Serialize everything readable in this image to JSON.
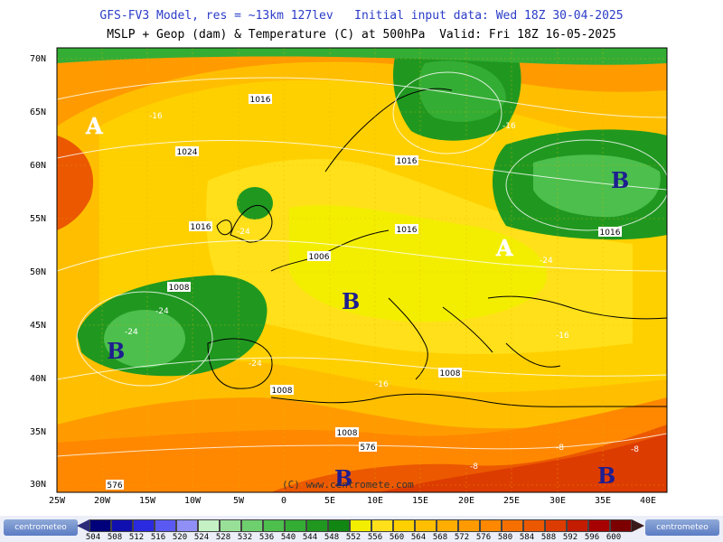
{
  "header": {
    "line1": "GFS-FV3 Model, res = ~13km 127lev   Initial input data: Wed 18Z 30-04-2025",
    "line2": "MSLP + Geop (dam) & Temperature (C) at 500hPa  Valid: Fri 18Z 16-05-2025"
  },
  "axes": {
    "lat_labels": [
      "70N",
      "65N",
      "60N",
      "55N",
      "50N",
      "45N",
      "40N",
      "35N",
      "30N"
    ],
    "lon_labels": [
      "25W",
      "20W",
      "15W",
      "10W",
      "5W",
      "0",
      "5E",
      "10E",
      "15E",
      "20E",
      "25E",
      "30E",
      "35E",
      "40E"
    ]
  },
  "pressure_centers": [
    {
      "type": "A",
      "region": "west of Ireland, north Atlantic"
    },
    {
      "type": "A",
      "region": "Ukraine"
    },
    {
      "type": "B",
      "region": "Iberian Atlantic"
    },
    {
      "type": "B",
      "region": "France / Central Europe"
    },
    {
      "type": "B",
      "region": "Western Russia"
    },
    {
      "type": "B",
      "region": "North Africa"
    },
    {
      "type": "B",
      "region": "Eastern Mediterranean"
    }
  ],
  "isobar_labels": [
    "1016",
    "1016",
    "1024",
    "1016",
    "1016",
    "1006",
    "1008",
    "1008",
    "1008",
    "1008",
    "1016"
  ],
  "temp_labels": [
    "-16",
    "-24",
    "-24",
    "-24",
    "-24",
    "-24",
    "-16",
    "-16",
    "-16",
    "-8",
    "-8",
    "-8"
  ],
  "geop_labels": [
    "576",
    "576"
  ],
  "copyright": "(C) www.centromete.com",
  "logos": {
    "left": "centrometeo",
    "right": "centrometeo"
  },
  "scale": {
    "values": [
      "504",
      "508",
      "512",
      "516",
      "520",
      "524",
      "528",
      "532",
      "536",
      "540",
      "544",
      "548",
      "552",
      "556",
      "560",
      "564",
      "568",
      "572",
      "576",
      "580",
      "584",
      "588",
      "592",
      "596",
      "600"
    ],
    "colors": [
      "#00007a",
      "#1010b0",
      "#2a2ae0",
      "#5a5af2",
      "#8f8ff5",
      "#c4f2c4",
      "#98e098",
      "#6ecf6e",
      "#4cbf4c",
      "#34ad34",
      "#209820",
      "#128612",
      "#f3ee00",
      "#ffe01a",
      "#ffd000",
      "#ffbf00",
      "#ffad00",
      "#ff9b00",
      "#ff8800",
      "#f57000",
      "#eb5800",
      "#dd3c00",
      "#c41c00",
      "#a60000",
      "#7d0000"
    ]
  }
}
